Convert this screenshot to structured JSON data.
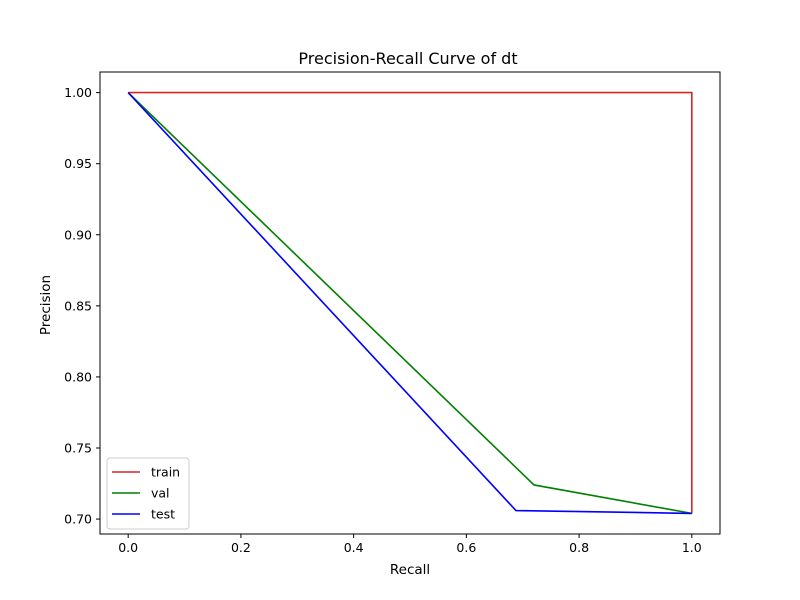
{
  "chart_data": {
    "type": "line",
    "title": "Precision-Recall Curve of dt",
    "xlabel": "Recall",
    "ylabel": "Precision",
    "xlim": [
      -0.05,
      1.05
    ],
    "ylim": [
      0.6895,
      1.0145
    ],
    "xticks": [
      0.0,
      0.2,
      0.4,
      0.6,
      0.8,
      1.0
    ],
    "xtick_labels": [
      "0.0",
      "0.2",
      "0.4",
      "0.6",
      "0.8",
      "1.0"
    ],
    "yticks": [
      0.7,
      0.75,
      0.8,
      0.85,
      0.9,
      0.95,
      1.0
    ],
    "ytick_labels": [
      "0.70",
      "0.75",
      "0.80",
      "0.85",
      "0.90",
      "0.95",
      "1.00"
    ],
    "grid": false,
    "legend_position": "lower-left",
    "series": [
      {
        "name": "train",
        "color": "#d62728",
        "x": [
          0.0,
          1.0,
          1.0
        ],
        "y": [
          1.0,
          1.0,
          0.704
        ]
      },
      {
        "name": "val",
        "color": "#008000",
        "x": [
          0.0,
          0.72,
          1.0
        ],
        "y": [
          1.0,
          0.724,
          0.704
        ]
      },
      {
        "name": "test",
        "color": "#0000ff",
        "x": [
          0.0,
          0.688,
          1.0
        ],
        "y": [
          1.0,
          0.706,
          0.704
        ]
      }
    ]
  }
}
